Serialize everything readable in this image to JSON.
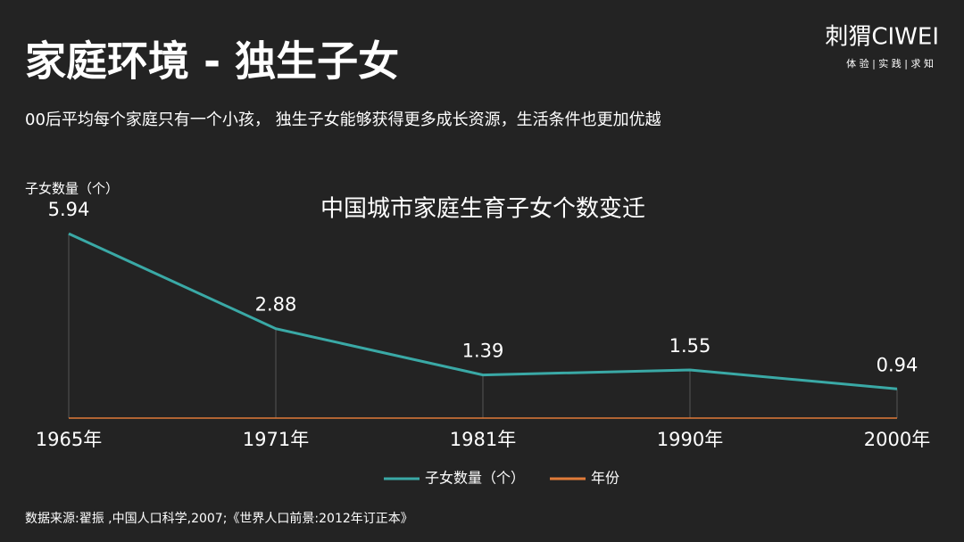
{
  "header": {
    "title": "家庭环境 - 独生子女",
    "subtitle": "00后平均每个家庭只有一个小孩， 独生子女能够获得更多成长资源，生活条件也更加优越",
    "logo": "刺猬CIWEI",
    "tagline": "体 验 | 实 践 | 求 知"
  },
  "chart_data": {
    "type": "line",
    "title": "中国城市家庭生育子女个数变迁",
    "y_label": "子女数量（个）",
    "categories": [
      "1965年",
      "1971年",
      "1981年",
      "1990年",
      "2000年"
    ],
    "series": [
      {
        "name": "子女数量（个）",
        "color": "#3aa9a6",
        "values": [
          5.94,
          2.88,
          1.39,
          1.55,
          0.94
        ]
      },
      {
        "name": "年份",
        "color": "#e07b39"
      }
    ],
    "ylim": [
      0,
      6
    ]
  },
  "source": "数据来源:翟振 ,中国人口科学,2007;《世界人口前景:2012年订正本》"
}
